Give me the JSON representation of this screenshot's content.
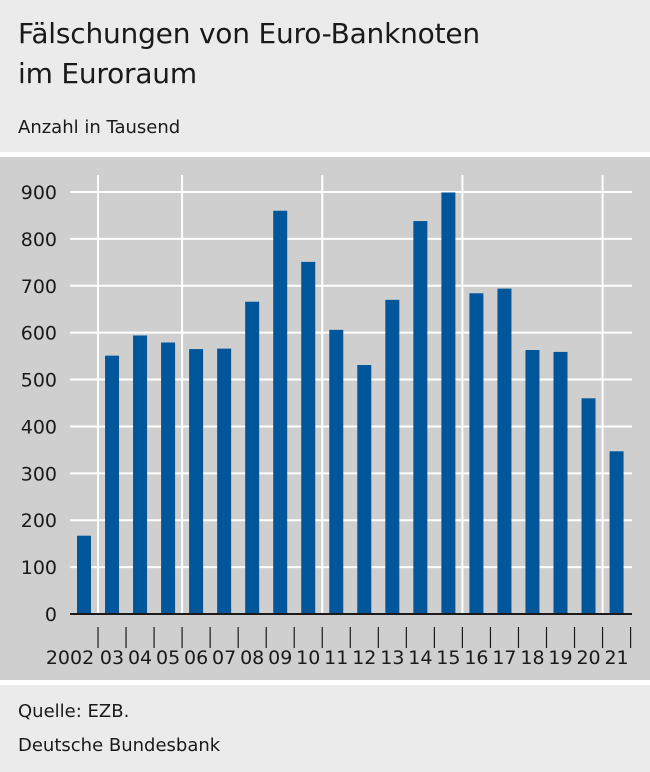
{
  "title_line1": "Fälschungen von Euro-Banknoten",
  "title_line2": "im Euroraum",
  "subtitle": "Anzahl in Tausend",
  "source": "Quelle: EZB.",
  "publisher": "Deutsche Bundesbank",
  "colors": {
    "bar": "#00569a",
    "plot_background": "#cfcfcf",
    "panel_background": "#ebebeb",
    "gridline": "#ffffff"
  },
  "chart_data": {
    "type": "bar",
    "categories": [
      "2002",
      "03",
      "04",
      "05",
      "06",
      "07",
      "08",
      "09",
      "10",
      "11",
      "12",
      "13",
      "14",
      "15",
      "16",
      "17",
      "18",
      "19",
      "20",
      "21"
    ],
    "values": [
      167,
      551,
      594,
      579,
      565,
      566,
      666,
      860,
      751,
      606,
      531,
      670,
      838,
      899,
      684,
      694,
      563,
      559,
      460,
      347
    ],
    "ylim": [
      0,
      900
    ],
    "yticks": [
      0,
      100,
      200,
      300,
      400,
      500,
      600,
      700,
      800,
      900
    ],
    "grid": true,
    "separator_after_categories": [
      "2002",
      "05",
      "10",
      "15",
      "20"
    ]
  }
}
